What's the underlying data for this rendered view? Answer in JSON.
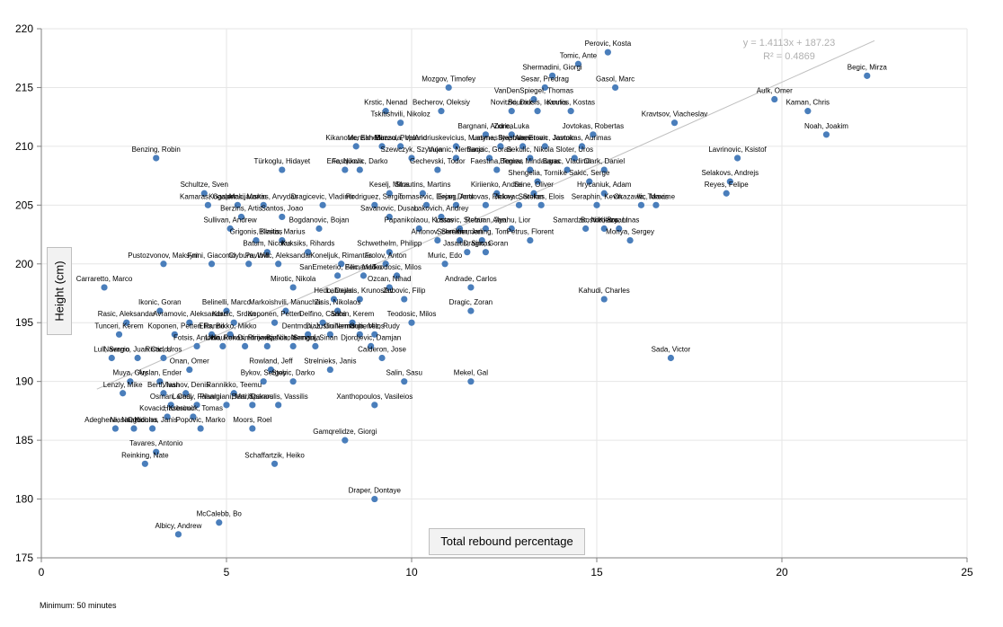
{
  "chart_data": {
    "type": "scatter",
    "xlabel": "Total rebound percentage",
    "ylabel": "Height (cm)",
    "xlim": [
      0,
      25
    ],
    "ylim": [
      175,
      220
    ],
    "xticks": [
      "0",
      "5",
      "10",
      "15",
      "20",
      "25"
    ],
    "yticks": [
      "175",
      "180",
      "185",
      "190",
      "195",
      "200",
      "205",
      "210",
      "215",
      "220"
    ],
    "grid": true,
    "marker_color": "#4a7ebb",
    "trendline": {
      "equation": "y = 1.4113x + 187.23",
      "r2": "R² = 0.4869",
      "slope": 1.4113,
      "intercept": 187.23,
      "x_range": [
        1.5,
        22.5
      ]
    },
    "footnote": "Minimum: 50 minutes",
    "points": [
      {
        "label": "Perovic, Kosta",
        "x": 15.3,
        "y": 218
      },
      {
        "label": "Tomic, Ante",
        "x": 14.5,
        "y": 217
      },
      {
        "label": "Begic, Mirza",
        "x": 22.3,
        "y": 216
      },
      {
        "label": "Shermadini, Giorgi",
        "x": 13.8,
        "y": 216
      },
      {
        "label": "Mozgov, Timofey",
        "x": 11.0,
        "y": 215
      },
      {
        "label": "Sesar, Predrag",
        "x": 13.6,
        "y": 215
      },
      {
        "label": "Gasol, Marc",
        "x": 15.5,
        "y": 215
      },
      {
        "label": "VanDenSpiegel, Thomas",
        "x": 13.3,
        "y": 214
      },
      {
        "label": "Aulk, Omer",
        "x": 19.8,
        "y": 214
      },
      {
        "label": "Kaman, Chris",
        "x": 20.7,
        "y": 213
      },
      {
        "label": "Novitzki, Dirk",
        "x": 12.7,
        "y": 213
      },
      {
        "label": "Bourousis, Ioannis",
        "x": 13.4,
        "y": 213
      },
      {
        "label": "Koufos, Kostas",
        "x": 14.3,
        "y": 213
      },
      {
        "label": "Krstic, Nenad",
        "x": 9.3,
        "y": 213
      },
      {
        "label": "Becherov, Oleksiy",
        "x": 10.8,
        "y": 213
      },
      {
        "label": "Tskitishvili, Nikoloz",
        "x": 9.7,
        "y": 212
      },
      {
        "label": "Kravtsov, Viacheslav",
        "x": 17.1,
        "y": 212
      },
      {
        "label": "Noah, Joakim",
        "x": 21.2,
        "y": 211
      },
      {
        "label": "Bargnani, Andrea",
        "x": 12.0,
        "y": 211
      },
      {
        "label": "Zoric, Luka",
        "x": 12.7,
        "y": 211
      },
      {
        "label": "Jovtokas, Robertas",
        "x": 14.9,
        "y": 211
      },
      {
        "label": "Kikanovic, Elmedin",
        "x": 8.5,
        "y": 210
      },
      {
        "label": "Mensah-Bonsu, Pops",
        "x": 9.2,
        "y": 210
      },
      {
        "label": "Mazzola, Valerio",
        "x": 9.7,
        "y": 210
      },
      {
        "label": "Andriuskevicius, Martynas",
        "x": 11.2,
        "y": 210
      },
      {
        "label": "Lasme, Stephane",
        "x": 12.4,
        "y": 210
      },
      {
        "label": "Ilyasova, Ersan",
        "x": 13.0,
        "y": 210
      },
      {
        "label": "Ahmetovic, Jasmin",
        "x": 13.6,
        "y": 210
      },
      {
        "label": "Javtokas, Aurimas",
        "x": 14.6,
        "y": 210
      },
      {
        "label": "Lavrinovic, Ksistof",
        "x": 18.8,
        "y": 209
      },
      {
        "label": "Benzing, Robin",
        "x": 3.1,
        "y": 209
      },
      {
        "label": "Szewczyk, Szymon",
        "x": 10.0,
        "y": 209
      },
      {
        "label": "Vujanic, Nemanja",
        "x": 11.2,
        "y": 209
      },
      {
        "label": "Baccic, Goran",
        "x": 12.1,
        "y": 209
      },
      {
        "label": "Sekulic, Nikola",
        "x": 13.2,
        "y": 209
      },
      {
        "label": "Sloter, Uros",
        "x": 14.4,
        "y": 209
      },
      {
        "label": "Eric, Nikola",
        "x": 8.2,
        "y": 208
      },
      {
        "label": "Fasquovic, Darko",
        "x": 8.6,
        "y": 208
      },
      {
        "label": "Türkoglu, Hidayet",
        "x": 6.5,
        "y": 208
      },
      {
        "label": "Gechevski, Todor",
        "x": 10.7,
        "y": 208
      },
      {
        "label": "Faestina, Tomas",
        "x": 12.3,
        "y": 208
      },
      {
        "label": "Begiev, Mindaugas",
        "x": 13.2,
        "y": 208
      },
      {
        "label": "Barac, Vladimir",
        "x": 14.2,
        "y": 208
      },
      {
        "label": "Clark, Daniel",
        "x": 15.2,
        "y": 208
      },
      {
        "label": "Selakovs, Andrejs",
        "x": 18.6,
        "y": 207
      },
      {
        "label": "Shengelia, Tornike",
        "x": 13.4,
        "y": 207
      },
      {
        "label": "Sakic, Serge",
        "x": 14.8,
        "y": 207
      },
      {
        "label": "Keselj, Milos",
        "x": 9.4,
        "y": 206
      },
      {
        "label": "Strautins, Martins",
        "x": 10.3,
        "y": 206
      },
      {
        "label": "Schultze, Sven",
        "x": 4.4,
        "y": 206
      },
      {
        "label": "Kiriienko, Andrei",
        "x": 12.3,
        "y": 206
      },
      {
        "label": "Sene, Oliver",
        "x": 13.3,
        "y": 206
      },
      {
        "label": "Hrycaniuk, Adam",
        "x": 15.2,
        "y": 206
      },
      {
        "label": "Reyes, Felipe",
        "x": 18.5,
        "y": 206
      },
      {
        "label": "Kamaras, Gasper",
        "x": 4.5,
        "y": 205
      },
      {
        "label": "Kogalenak, Martin",
        "x": 5.3,
        "y": 205
      },
      {
        "label": "Macijauskas, Arvydas",
        "x": 6.0,
        "y": 205
      },
      {
        "label": "Dragicevic, Vladimir",
        "x": 7.6,
        "y": 205
      },
      {
        "label": "Rodriguez, Sergio",
        "x": 9.0,
        "y": 205
      },
      {
        "label": "Tomasevic, Dejan",
        "x": 10.4,
        "y": 205
      },
      {
        "label": "Erceg, Ante",
        "x": 11.2,
        "y": 205
      },
      {
        "label": "Dardovas, Rickey",
        "x": 12.0,
        "y": 205
      },
      {
        "label": "Jelovac, Stefan",
        "x": 12.9,
        "y": 205
      },
      {
        "label": "Sorokas, Elois",
        "x": 13.5,
        "y": 205
      },
      {
        "label": "Seraphin, Kevin",
        "x": 15.0,
        "y": 205
      },
      {
        "label": "Okazawa, Tomas",
        "x": 16.2,
        "y": 205
      },
      {
        "label": "Ilic, Maxime",
        "x": 16.6,
        "y": 205
      },
      {
        "label": "Berzins, Artis",
        "x": 5.4,
        "y": 204
      },
      {
        "label": "Santos, Joao",
        "x": 6.5,
        "y": 204
      },
      {
        "label": "Savanovic, Dusan",
        "x": 9.4,
        "y": 204
      },
      {
        "label": "Lakovich, Andrey",
        "x": 10.8,
        "y": 204
      },
      {
        "label": "Sullivan, Andrew",
        "x": 5.1,
        "y": 203
      },
      {
        "label": "Bogdanovic, Bojan",
        "x": 7.5,
        "y": 203
      },
      {
        "label": "Papanikolaou, Kostas",
        "x": 10.2,
        "y": 203
      },
      {
        "label": "Lasovic, Stefan",
        "x": 11.3,
        "y": 203
      },
      {
        "label": "Rebuan, Jan",
        "x": 12.0,
        "y": 203
      },
      {
        "label": "Alyahu, Lior",
        "x": 12.7,
        "y": 203
      },
      {
        "label": "Samardzic, Nikolaos",
        "x": 14.7,
        "y": 203
      },
      {
        "label": "Boston, Bryant",
        "x": 15.2,
        "y": 203
      },
      {
        "label": "Kleiza, Linas",
        "x": 15.6,
        "y": 203
      },
      {
        "label": "Monya, Sergey",
        "x": 15.9,
        "y": 202
      },
      {
        "label": "Grigonis, Kestas",
        "x": 5.8,
        "y": 202
      },
      {
        "label": "Ellaitis, Marius",
        "x": 6.5,
        "y": 202
      },
      {
        "label": "Antonov, Semen",
        "x": 10.7,
        "y": 202
      },
      {
        "label": "Schreiner, Jan",
        "x": 11.3,
        "y": 202
      },
      {
        "label": "Kimmerling, Tom",
        "x": 11.9,
        "y": 202
      },
      {
        "label": "Petrus, Florent",
        "x": 13.2,
        "y": 202
      },
      {
        "label": "Batum, Nicolas",
        "x": 6.1,
        "y": 201
      },
      {
        "label": "Kuksiks, Rihards",
        "x": 7.2,
        "y": 201
      },
      {
        "label": "Schwethelm, Philipp",
        "x": 9.4,
        "y": 201
      },
      {
        "label": "Jasaitis, Simas",
        "x": 11.5,
        "y": 201
      },
      {
        "label": "Dragic, Goran",
        "x": 12.0,
        "y": 201
      },
      {
        "label": "Pustozvonov, Maksym",
        "x": 3.3,
        "y": 200
      },
      {
        "label": "Fnini, Giacomo",
        "x": 4.6,
        "y": 200
      },
      {
        "label": "Clyburn, Will",
        "x": 5.6,
        "y": 200
      },
      {
        "label": "Pavlovic, Aleksandar",
        "x": 6.4,
        "y": 200
      },
      {
        "label": "Koneljuk, Rimantas",
        "x": 8.1,
        "y": 200
      },
      {
        "label": "Frolov, Anton",
        "x": 9.3,
        "y": 200
      },
      {
        "label": "Muric, Edo",
        "x": 10.9,
        "y": 200
      },
      {
        "label": "SanEmeterio, Fernando",
        "x": 8.0,
        "y": 199
      },
      {
        "label": "Bilic, Marko",
        "x": 8.7,
        "y": 199
      },
      {
        "label": "Teodosic, Milos",
        "x": 9.6,
        "y": 199
      },
      {
        "label": "Carraretto, Marco",
        "x": 1.7,
        "y": 198
      },
      {
        "label": "Mirotic, Nikola",
        "x": 6.8,
        "y": 198
      },
      {
        "label": "Ozcan, Nihad",
        "x": 9.4,
        "y": 198
      },
      {
        "label": "Andrade, Carlos",
        "x": 11.6,
        "y": 198
      },
      {
        "label": "Hedo, Dejan",
        "x": 7.9,
        "y": 197
      },
      {
        "label": "Laboulais, Krunoslav",
        "x": 8.6,
        "y": 197
      },
      {
        "label": "Zubovic, Filip",
        "x": 9.8,
        "y": 197
      },
      {
        "label": "Kahudi, Charles",
        "x": 15.2,
        "y": 197
      },
      {
        "label": "Belinelli, Marco",
        "x": 5.0,
        "y": 196
      },
      {
        "label": "Markoishvili, Manuchar",
        "x": 6.6,
        "y": 196
      },
      {
        "label": "Zisis, Nikolaos",
        "x": 8.0,
        "y": 196
      },
      {
        "label": "Ikonic, Goran",
        "x": 3.2,
        "y": 196
      },
      {
        "label": "Dragic, Zoran",
        "x": 11.6,
        "y": 196
      },
      {
        "label": "Avramovic, Aleksandar",
        "x": 4.0,
        "y": 195
      },
      {
        "label": "Kordic, Srdan",
        "x": 5.2,
        "y": 195
      },
      {
        "label": "Koponen, Petteri",
        "x": 6.3,
        "y": 195
      },
      {
        "label": "Delfino, Carlos",
        "x": 7.6,
        "y": 195
      },
      {
        "label": "Sahin, Kerem",
        "x": 8.4,
        "y": 195
      },
      {
        "label": "Teodosic, Milos",
        "x": 10.0,
        "y": 195
      },
      {
        "label": "Rasic, Aleksandar",
        "x": 2.3,
        "y": 195
      },
      {
        "label": "Tunceri, Kerem",
        "x": 2.1,
        "y": 194
      },
      {
        "label": "Koponen, Petteri",
        "x": 3.6,
        "y": 194
      },
      {
        "label": "Ellis, Bo",
        "x": 4.6,
        "y": 194
      },
      {
        "label": "Rannikko, Mikko",
        "x": 5.1,
        "y": 194
      },
      {
        "label": "Dentmon, Justin",
        "x": 7.2,
        "y": 194
      },
      {
        "label": "Diaz, Guillermo",
        "x": 7.8,
        "y": 194
      },
      {
        "label": "Nemanja, Milos",
        "x": 8.6,
        "y": 194
      },
      {
        "label": "Gutierrez, Rudy",
        "x": 9.0,
        "y": 194
      },
      {
        "label": "Lull, Sergio",
        "x": 1.9,
        "y": 192
      },
      {
        "label": "Navarro, Juan Carlos",
        "x": 2.6,
        "y": 192
      },
      {
        "label": "Ristic, Uros",
        "x": 3.3,
        "y": 192
      },
      {
        "label": "Fotsis, Antonis",
        "x": 4.2,
        "y": 193
      },
      {
        "label": "Ukic, Roko",
        "x": 4.9,
        "y": 193
      },
      {
        "label": "Kaukenas, Rimantas",
        "x": 5.5,
        "y": 193
      },
      {
        "label": "Dimitrijevic, Nikola",
        "x": 6.1,
        "y": 193
      },
      {
        "label": "Bjelica, Nemanja",
        "x": 6.8,
        "y": 193
      },
      {
        "label": "Sengul, Sinan",
        "x": 7.4,
        "y": 193
      },
      {
        "label": "Djordjevic, Damjan",
        "x": 8.9,
        "y": 193
      },
      {
        "label": "Calderon, Jose",
        "x": 9.2,
        "y": 192
      },
      {
        "label": "Sada, Victor",
        "x": 17.0,
        "y": 192
      },
      {
        "label": "Onan, Omer",
        "x": 4.0,
        "y": 191
      },
      {
        "label": "Rowland, Jeff",
        "x": 6.2,
        "y": 191
      },
      {
        "label": "Strelnieks, Janis",
        "x": 7.8,
        "y": 191
      },
      {
        "label": "Muya, Guy",
        "x": 2.4,
        "y": 190
      },
      {
        "label": "Arslan, Ender",
        "x": 3.2,
        "y": 190
      },
      {
        "label": "Bykov, Sergey",
        "x": 6.0,
        "y": 190
      },
      {
        "label": "Stobic, Darko",
        "x": 6.8,
        "y": 190
      },
      {
        "label": "Salin, Sasu",
        "x": 9.8,
        "y": 190
      },
      {
        "label": "Mekel, Gal",
        "x": 11.6,
        "y": 190
      },
      {
        "label": "Lenzly, Mike",
        "x": 2.2,
        "y": 189
      },
      {
        "label": "Bertl, Ivan",
        "x": 3.3,
        "y": 189
      },
      {
        "label": "Vlashov, Denis",
        "x": 3.9,
        "y": 189
      },
      {
        "label": "Rannikko, Teemu",
        "x": 5.2,
        "y": 189
      },
      {
        "label": "Osman, Cedi",
        "x": 3.5,
        "y": 188
      },
      {
        "label": "Lamay, Fahami",
        "x": 4.2,
        "y": 188
      },
      {
        "label": "Pianigiani, Mario",
        "x": 5.0,
        "y": 188
      },
      {
        "label": "Berti, Oskars",
        "x": 5.7,
        "y": 188
      },
      {
        "label": "Spanoulis, Vassilis",
        "x": 6.4,
        "y": 188
      },
      {
        "label": "Xanthopoulos, Vasileios",
        "x": 9.0,
        "y": 188
      },
      {
        "label": "Kovacic, Kresimir",
        "x": 3.4,
        "y": 187
      },
      {
        "label": "Hasbrouck, Tomas",
        "x": 4.1,
        "y": 187
      },
      {
        "label": "Adeghene, Nnamdi",
        "x": 2.0,
        "y": 186
      },
      {
        "label": "Niasar, Nicolas",
        "x": 2.5,
        "y": 186
      },
      {
        "label": "Ogbonna, Janis",
        "x": 3.0,
        "y": 186
      },
      {
        "label": "Popovic, Marko",
        "x": 4.3,
        "y": 186
      },
      {
        "label": "Moors, Roel",
        "x": 5.7,
        "y": 186
      },
      {
        "label": "Gamqrelidze, Giorgi",
        "x": 8.2,
        "y": 185
      },
      {
        "label": "Tavares, Antonio",
        "x": 3.1,
        "y": 184
      },
      {
        "label": "Reinking, Nate",
        "x": 2.8,
        "y": 183
      },
      {
        "label": "Schaffartzik, Heiko",
        "x": 6.3,
        "y": 183
      },
      {
        "label": "Draper, Dontaye",
        "x": 9.0,
        "y": 180
      },
      {
        "label": "McCalebb, Bo",
        "x": 4.8,
        "y": 178
      },
      {
        "label": "Albicy, Andrew",
        "x": 3.7,
        "y": 177
      }
    ]
  }
}
